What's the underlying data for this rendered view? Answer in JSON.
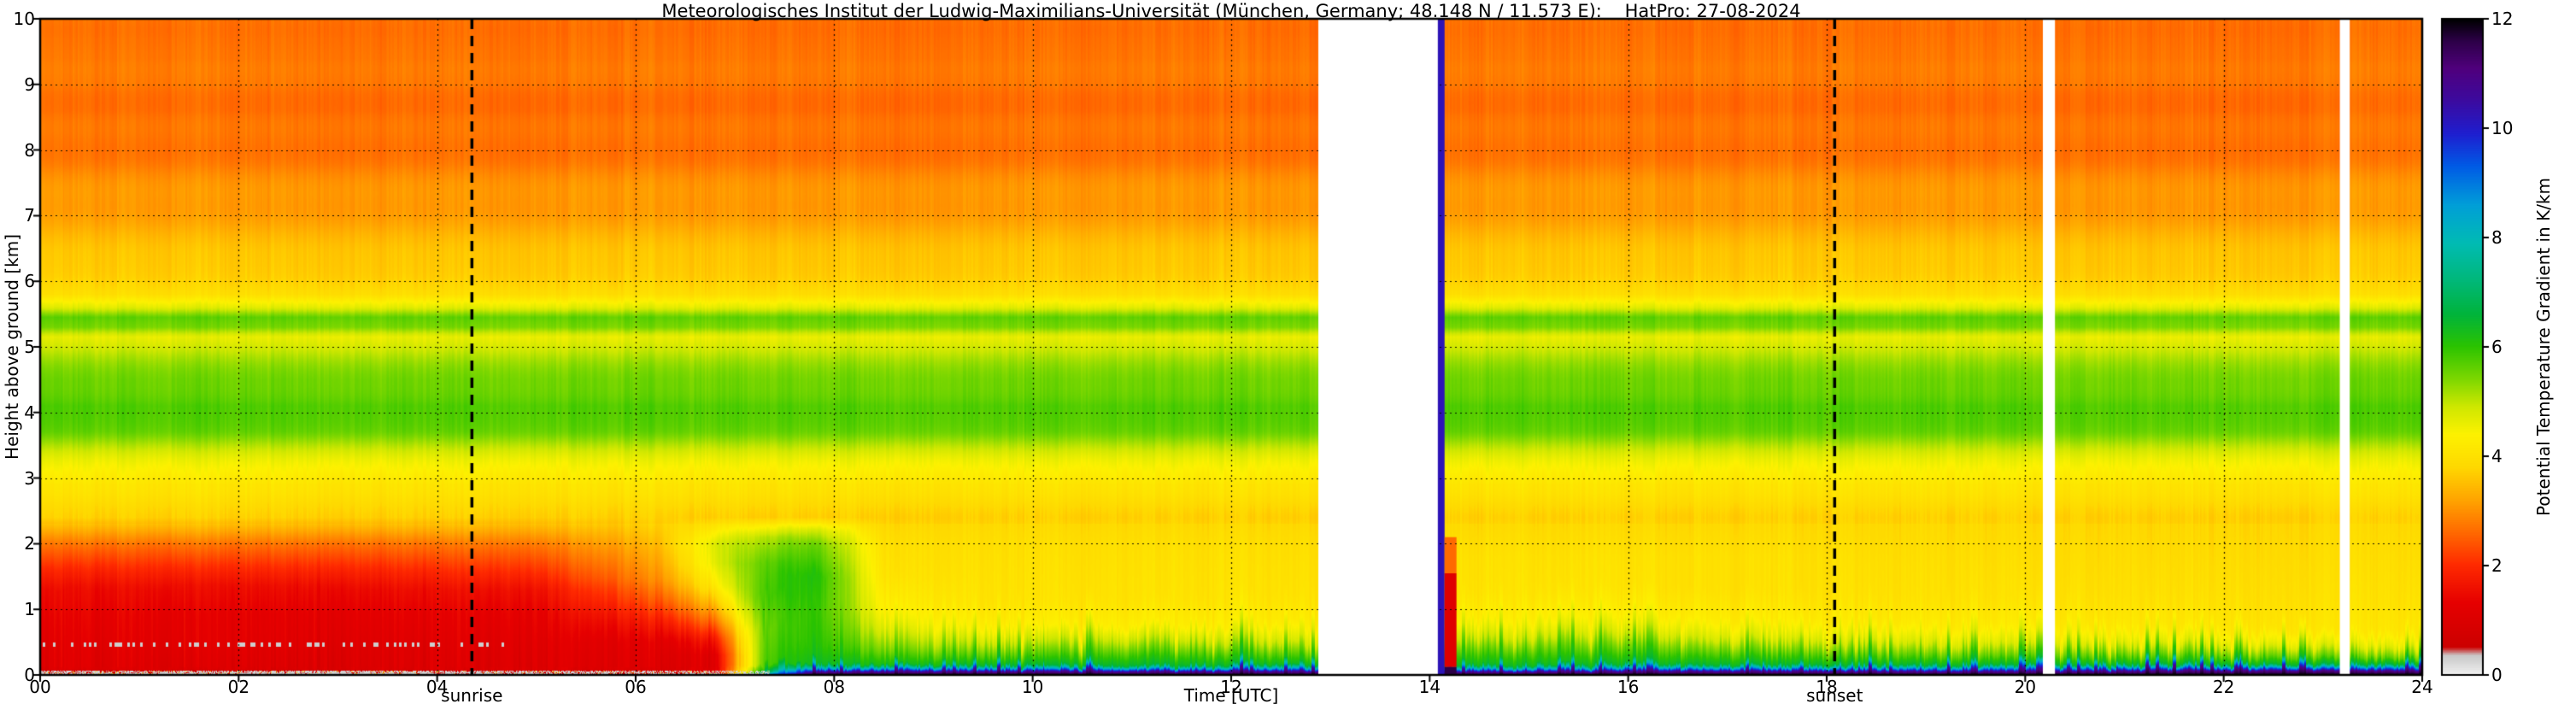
{
  "chart_data": {
    "type": "heatmap",
    "title": "Meteorologisches Institut der Ludwig-Maximilians-Universität (München, Germany; 48.148 N / 11.573 E):    HatPro: 27-08-2024",
    "xlabel": "Time [UTC]",
    "ylabel": "Height above ground [km]",
    "colorbar_label": "Potential Temperature Gradient in K/km",
    "x_range_utc": [
      0,
      24
    ],
    "y_range_km": [
      0,
      10
    ],
    "x_ticks": [
      {
        "value": 0,
        "label": "00"
      },
      {
        "value": 2,
        "label": "02"
      },
      {
        "value": 4,
        "label": "04"
      },
      {
        "value": 6,
        "label": "06"
      },
      {
        "value": 8,
        "label": "08"
      },
      {
        "value": 10,
        "label": "10"
      },
      {
        "value": 12,
        "label": "12"
      },
      {
        "value": 14,
        "label": "14"
      },
      {
        "value": 16,
        "label": "16"
      },
      {
        "value": 18,
        "label": "18"
      },
      {
        "value": 20,
        "label": "20"
      },
      {
        "value": 22,
        "label": "22"
      },
      {
        "value": 24,
        "label": "24"
      }
    ],
    "y_ticks": [
      {
        "value": 0,
        "label": "0"
      },
      {
        "value": 1,
        "label": "1"
      },
      {
        "value": 2,
        "label": "2"
      },
      {
        "value": 3,
        "label": "3"
      },
      {
        "value": 4,
        "label": "4"
      },
      {
        "value": 5,
        "label": "5"
      },
      {
        "value": 6,
        "label": "6"
      },
      {
        "value": 7,
        "label": "7"
      },
      {
        "value": 8,
        "label": "8"
      },
      {
        "value": 9,
        "label": "9"
      },
      {
        "value": 10,
        "label": "10"
      }
    ],
    "colorbar": {
      "range": [
        0,
        12
      ],
      "ticks": [
        {
          "value": 0,
          "label": "0"
        },
        {
          "value": 2,
          "label": "2"
        },
        {
          "value": 4,
          "label": "4"
        },
        {
          "value": 6,
          "label": "6"
        },
        {
          "value": 8,
          "label": "8"
        },
        {
          "value": 10,
          "label": "10"
        },
        {
          "value": 12,
          "label": "12"
        }
      ],
      "colormap_stops": [
        [
          0.0,
          "#f0f0f0"
        ],
        [
          0.35,
          "#c9c9c9"
        ],
        [
          0.5,
          "#cc0000"
        ],
        [
          1.3,
          "#e60000"
        ],
        [
          2.0,
          "#ff2a00"
        ],
        [
          2.6,
          "#ff6a00"
        ],
        [
          3.2,
          "#ffa500"
        ],
        [
          3.8,
          "#ffd900"
        ],
        [
          4.4,
          "#fdf200"
        ],
        [
          4.9,
          "#cfe800"
        ],
        [
          5.4,
          "#7fd800"
        ],
        [
          6.0,
          "#2cc400"
        ],
        [
          6.6,
          "#00b43c"
        ],
        [
          7.2,
          "#00b878"
        ],
        [
          7.9,
          "#00bcb4"
        ],
        [
          8.6,
          "#009fd8"
        ],
        [
          9.3,
          "#005ce6"
        ],
        [
          9.9,
          "#1f1fd0"
        ],
        [
          10.5,
          "#3c0ba0"
        ],
        [
          11.1,
          "#50007d"
        ],
        [
          11.6,
          "#2d0048"
        ],
        [
          12.0,
          "#000000"
        ]
      ]
    },
    "grid": {
      "style": "dotted",
      "x_interval_h": 2,
      "y_interval_km": 1
    },
    "annotations": {
      "sunrise": {
        "label": "sunrise",
        "time_utc": 4.35
      },
      "sunset": {
        "label": "sunset",
        "time_utc": 18.08
      }
    },
    "data_gaps_utc": [
      [
        12.88,
        14.08
      ],
      [
        20.18,
        20.3
      ],
      [
        23.17,
        23.27
      ]
    ],
    "artifact_columns": [
      {
        "t0": 14.08,
        "t1": 14.15,
        "h0": 0.0,
        "h1": 10.0,
        "value": 10.2
      },
      {
        "t0": 14.15,
        "t1": 14.27,
        "h0": 0.12,
        "h1": 1.55,
        "value": 1.1
      },
      {
        "t0": 14.15,
        "t1": 14.27,
        "h0": 1.55,
        "h1": 2.1,
        "value": 2.6
      },
      {
        "t0": 14.15,
        "t1": 14.27,
        "h0": 0.0,
        "h1": 0.12,
        "value": 11.6
      }
    ],
    "upper_profile": [
      [
        2.4,
        3.8
      ],
      [
        2.9,
        4.0
      ],
      [
        3.3,
        4.7
      ],
      [
        3.7,
        5.5
      ],
      [
        4.1,
        5.8
      ],
      [
        4.5,
        5.5
      ],
      [
        4.9,
        5.0
      ],
      [
        5.15,
        4.7
      ],
      [
        5.3,
        5.5
      ],
      [
        5.45,
        5.6
      ],
      [
        5.6,
        4.6
      ],
      [
        5.8,
        3.9
      ],
      [
        6.2,
        3.7
      ],
      [
        6.6,
        3.4
      ],
      [
        7.0,
        3.2
      ],
      [
        7.4,
        3.0
      ],
      [
        7.8,
        2.8
      ],
      [
        8.2,
        2.7
      ],
      [
        8.6,
        2.6
      ],
      [
        9.0,
        2.8
      ],
      [
        9.4,
        2.65
      ],
      [
        9.7,
        2.75
      ],
      [
        10.0,
        2.7
      ]
    ],
    "profiles_keyframes": [
      {
        "t": 0.0,
        "low": [
          [
            0,
            0.3
          ],
          [
            0.05,
            0.55
          ],
          [
            0.09,
            1.05
          ],
          [
            0.5,
            1.15
          ],
          [
            0.9,
            1.3
          ],
          [
            1.3,
            1.45
          ],
          [
            1.6,
            1.9
          ],
          [
            2.0,
            2.7
          ]
        ]
      },
      {
        "t": 2.0,
        "low": [
          [
            0,
            0.3
          ],
          [
            0.05,
            0.5
          ],
          [
            0.09,
            1.0
          ],
          [
            0.5,
            1.2
          ],
          [
            0.9,
            1.25
          ],
          [
            1.35,
            1.5
          ],
          [
            1.65,
            2.0
          ],
          [
            2.0,
            2.7
          ]
        ]
      },
      {
        "t": 3.5,
        "low": [
          [
            0,
            0.3
          ],
          [
            0.05,
            0.55
          ],
          [
            0.09,
            1.05
          ],
          [
            0.5,
            1.15
          ],
          [
            0.95,
            1.3
          ],
          [
            1.3,
            1.5
          ],
          [
            1.6,
            1.95
          ],
          [
            2.0,
            2.7
          ]
        ]
      },
      {
        "t": 5.0,
        "low": [
          [
            0,
            0.35
          ],
          [
            0.05,
            0.6
          ],
          [
            0.09,
            1.05
          ],
          [
            0.55,
            1.2
          ],
          [
            0.95,
            1.35
          ],
          [
            1.3,
            1.6
          ],
          [
            1.6,
            2.1
          ],
          [
            2.0,
            2.8
          ]
        ]
      },
      {
        "t": 6.2,
        "low": [
          [
            0,
            0.5
          ],
          [
            0.05,
            0.8
          ],
          [
            0.1,
            1.05
          ],
          [
            0.5,
            1.2
          ],
          [
            0.8,
            1.7
          ],
          [
            1.1,
            2.3
          ],
          [
            1.45,
            2.9
          ],
          [
            1.9,
            3.3
          ]
        ]
      },
      {
        "t": 6.8,
        "low": [
          [
            0,
            0.9
          ],
          [
            0.05,
            1.0
          ],
          [
            0.3,
            1.1
          ],
          [
            0.55,
            1.7
          ],
          [
            0.8,
            2.6
          ],
          [
            1.05,
            3.4
          ],
          [
            1.35,
            4.2
          ],
          [
            1.7,
            4.7
          ],
          [
            2.0,
            4.8
          ]
        ]
      },
      {
        "t": 7.3,
        "low": [
          [
            0,
            9.0
          ],
          [
            0.05,
            6.5
          ],
          [
            0.15,
            5.8
          ],
          [
            0.7,
            5.6
          ],
          [
            1.2,
            5.9
          ],
          [
            1.7,
            5.7
          ],
          [
            2.1,
            5.1
          ]
        ]
      },
      {
        "t": 7.8,
        "low": [
          [
            0,
            12
          ],
          [
            0.05,
            10.6
          ],
          [
            0.1,
            8.2
          ],
          [
            0.17,
            6.4
          ],
          [
            0.45,
            6.1
          ],
          [
            0.95,
            6.0
          ],
          [
            1.5,
            6.2
          ],
          [
            2.0,
            5.6
          ],
          [
            2.2,
            4.9
          ]
        ]
      },
      {
        "t": 8.5,
        "low": [
          [
            0,
            12
          ],
          [
            0.05,
            10.7
          ],
          [
            0.1,
            8.3
          ],
          [
            0.16,
            6.3
          ],
          [
            0.4,
            5.5
          ],
          [
            0.7,
            4.8
          ],
          [
            1.0,
            4.4
          ],
          [
            1.5,
            4.1
          ],
          [
            2.0,
            4.0
          ]
        ]
      },
      {
        "t": 9.6,
        "low": [
          [
            0,
            12
          ],
          [
            0.05,
            10.8
          ],
          [
            0.1,
            8.4
          ],
          [
            0.15,
            6.5
          ],
          [
            0.3,
            5.7
          ],
          [
            0.5,
            4.9
          ],
          [
            0.75,
            4.3
          ],
          [
            1.1,
            4.05
          ],
          [
            1.6,
            4.0
          ],
          [
            2.0,
            3.95
          ]
        ]
      },
      {
        "t": 11.2,
        "low": [
          [
            0,
            12
          ],
          [
            0.05,
            10.8
          ],
          [
            0.1,
            8.4
          ],
          [
            0.15,
            6.5
          ],
          [
            0.32,
            5.9
          ],
          [
            0.55,
            5.0
          ],
          [
            0.8,
            4.3
          ],
          [
            1.2,
            4.05
          ],
          [
            1.7,
            4.0
          ],
          [
            2.0,
            3.95
          ]
        ]
      },
      {
        "t": 12.85,
        "low": [
          [
            0,
            12
          ],
          [
            0.05,
            10.7
          ],
          [
            0.1,
            8.3
          ],
          [
            0.16,
            6.4
          ],
          [
            0.3,
            5.7
          ],
          [
            0.5,
            4.8
          ],
          [
            0.8,
            4.25
          ],
          [
            1.2,
            4.05
          ],
          [
            1.7,
            4.0
          ],
          [
            2.0,
            3.95
          ]
        ]
      },
      {
        "t": 14.25,
        "low": [
          [
            0,
            12
          ],
          [
            0.05,
            10.6
          ],
          [
            0.1,
            8.2
          ],
          [
            0.16,
            6.4
          ],
          [
            0.35,
            5.8
          ],
          [
            0.6,
            4.9
          ],
          [
            0.9,
            4.3
          ],
          [
            1.3,
            4.05
          ],
          [
            1.8,
            4.0
          ]
        ]
      },
      {
        "t": 15.5,
        "low": [
          [
            0,
            12
          ],
          [
            0.05,
            10.7
          ],
          [
            0.1,
            8.3
          ],
          [
            0.16,
            6.4
          ],
          [
            0.38,
            5.7
          ],
          [
            0.65,
            4.8
          ],
          [
            0.95,
            4.3
          ],
          [
            1.35,
            4.05
          ],
          [
            1.8,
            4.0
          ]
        ]
      },
      {
        "t": 17.0,
        "low": [
          [
            0,
            12
          ],
          [
            0.05,
            10.8
          ],
          [
            0.1,
            8.4
          ],
          [
            0.15,
            6.5
          ],
          [
            0.33,
            5.7
          ],
          [
            0.55,
            4.8
          ],
          [
            0.85,
            4.25
          ],
          [
            1.3,
            4.0
          ],
          [
            1.8,
            4.0
          ]
        ]
      },
      {
        "t": 18.5,
        "low": [
          [
            0,
            12
          ],
          [
            0.05,
            10.8
          ],
          [
            0.1,
            8.4
          ],
          [
            0.15,
            6.5
          ],
          [
            0.3,
            5.7
          ],
          [
            0.5,
            4.8
          ],
          [
            0.8,
            4.2
          ],
          [
            1.2,
            4.0
          ],
          [
            1.7,
            3.95
          ]
        ]
      },
      {
        "t": 20.1,
        "low": [
          [
            0,
            12
          ],
          [
            0.05,
            10.8
          ],
          [
            0.11,
            8.5
          ],
          [
            0.16,
            6.5
          ],
          [
            0.3,
            5.6
          ],
          [
            0.5,
            4.7
          ],
          [
            0.78,
            4.2
          ],
          [
            1.2,
            4.0
          ]
        ]
      },
      {
        "t": 21.5,
        "low": [
          [
            0,
            12
          ],
          [
            0.06,
            10.9
          ],
          [
            0.11,
            8.6
          ],
          [
            0.16,
            6.5
          ],
          [
            0.3,
            5.6
          ],
          [
            0.48,
            4.7
          ],
          [
            0.75,
            4.15
          ],
          [
            1.2,
            4.0
          ]
        ]
      },
      {
        "t": 23.0,
        "low": [
          [
            0,
            12
          ],
          [
            0.06,
            11.0
          ],
          [
            0.11,
            8.7
          ],
          [
            0.16,
            6.6
          ],
          [
            0.28,
            5.6
          ],
          [
            0.45,
            4.7
          ],
          [
            0.7,
            4.1
          ],
          [
            1.15,
            4.0
          ]
        ]
      },
      {
        "t": 24.0,
        "low": [
          [
            0,
            12
          ],
          [
            0.06,
            11.0
          ],
          [
            0.12,
            8.8
          ],
          [
            0.17,
            6.6
          ],
          [
            0.28,
            5.5
          ],
          [
            0.45,
            4.6
          ],
          [
            0.7,
            4.1
          ],
          [
            1.15,
            4.0
          ]
        ]
      }
    ],
    "texture": {
      "column_stripe_amp": 0.15,
      "night_stripe_amp": 0.3,
      "night_top_wiggle": 0.12,
      "height_ripple_amp": 0.09,
      "height_ripple_freq": 6.8,
      "surface_speckle": {
        "t_max": 7.35,
        "h_max": 0.07,
        "gray_value": 0.25,
        "gray_fraction": 0.55,
        "bright_value": 3.5,
        "bright_fraction": 0.07
      },
      "speckle_line": {
        "t_max": 4.7,
        "h_center": 0.46,
        "h_half_width": 0.035,
        "fraction": 0.3,
        "value": 0.3
      },
      "jagged": {
        "t_min": 7.2,
        "h_max": 1.8,
        "amp": 0.4,
        "spike_fraction": 0.15,
        "spike_scale": 0.5,
        "thin_fraction": 0.03,
        "thin_scale": 1.4
      }
    }
  }
}
